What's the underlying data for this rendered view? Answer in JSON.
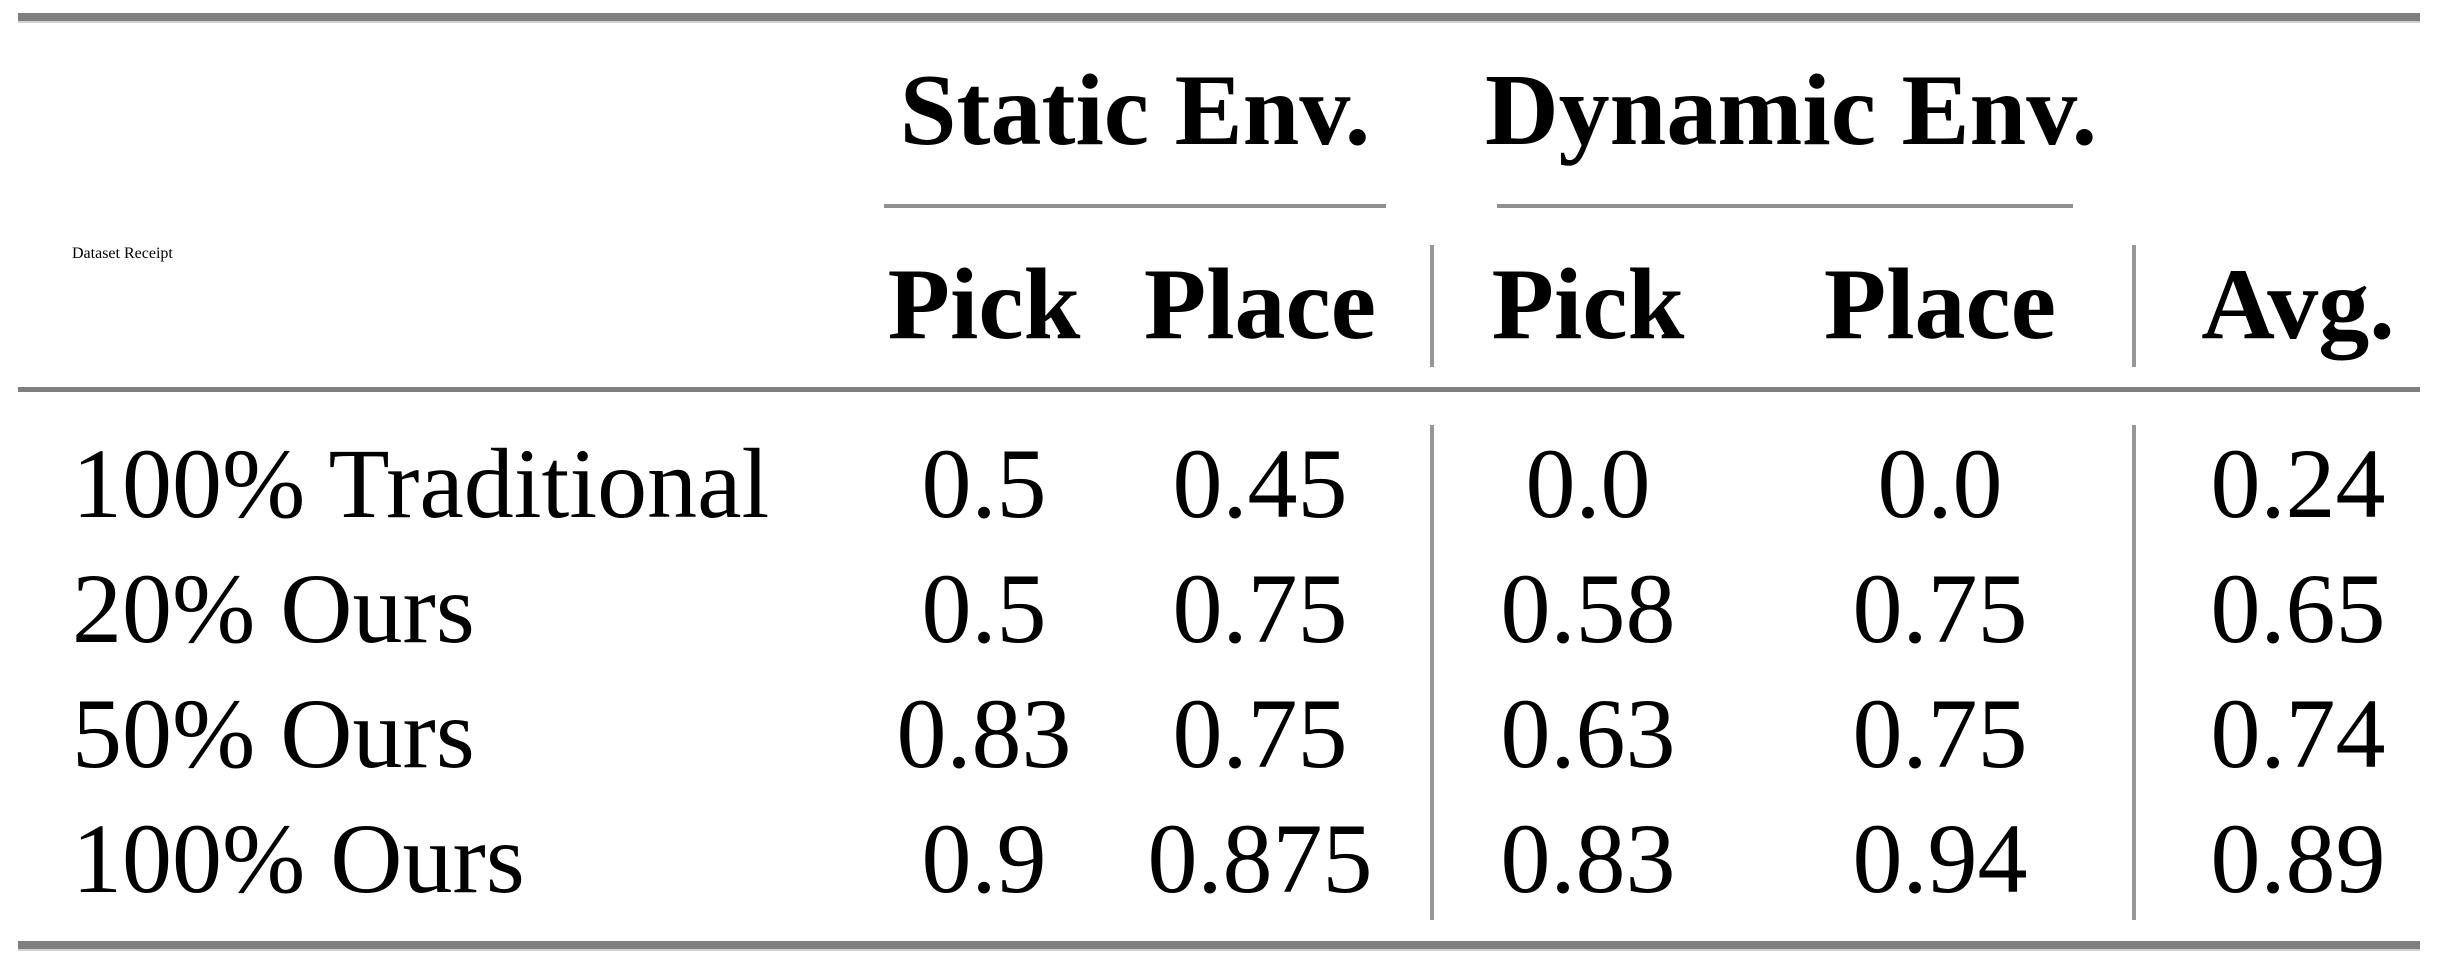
{
  "table": {
    "corner_header": "Dataset Receipt",
    "group_headers": {
      "static": "Static Env.",
      "dynamic": "Dynamic Env."
    },
    "column_headers": {
      "static_pick": "Pick",
      "static_place": "Place",
      "dynamic_pick": "Pick",
      "dynamic_place": "Place",
      "avg": "Avg."
    },
    "rows": [
      {
        "receipt": "100% Traditional",
        "static_pick": "0.5",
        "static_place": "0.45",
        "dynamic_pick": "0.0",
        "dynamic_place": "0.0",
        "avg": "0.24"
      },
      {
        "receipt": "20% Ours",
        "static_pick": "0.5",
        "static_place": "0.75",
        "dynamic_pick": "0.58",
        "dynamic_place": "0.75",
        "avg": "0.65"
      },
      {
        "receipt": "50% Ours",
        "static_pick": "0.83",
        "static_place": "0.75",
        "dynamic_pick": "0.63",
        "dynamic_place": "0.75",
        "avg": "0.74"
      },
      {
        "receipt": "100% Ours",
        "static_pick": "0.9",
        "static_place": "0.875",
        "dynamic_pick": "0.83",
        "dynamic_place": "0.94",
        "avg": "0.89"
      }
    ],
    "colors": {
      "heavy_rule": "#7f7f7f",
      "cmidrule": "#8f8f8f",
      "vertical_rule": "#979797",
      "text": "#000000",
      "background": "#ffffff"
    }
  }
}
